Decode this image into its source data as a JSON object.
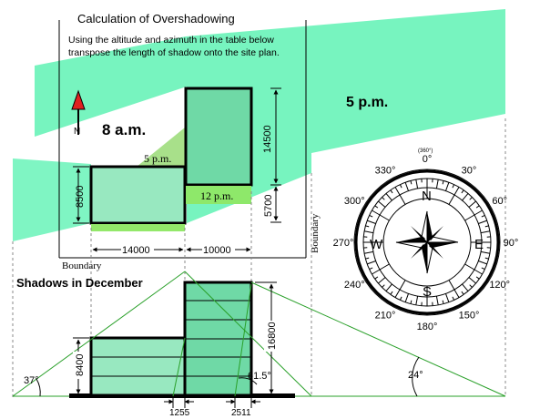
{
  "title": "Calculation of Overshadowing",
  "instructions": [
    "Using the altitude and azimuth in the table below",
    "transpose the length of shadow onto the site plan."
  ],
  "plan": {
    "north_label": "N",
    "time_8am": "8 a.m.",
    "time_5pm": "5 p.m.",
    "label_5pm_small": "5 p.m.",
    "label_12pm": "12 p.m.",
    "dim_8500": "8500",
    "dim_14500": "14500",
    "dim_5700": "5700",
    "dim_14000": "14000",
    "dim_10000": "10000",
    "boundary_bottom": "Boundary",
    "boundary_right": "Boundary"
  },
  "section": {
    "heading": "Shadows in December",
    "dim_16800": "16800",
    "dim_8400": "8400",
    "dim_1255": "1255",
    "dim_2511": "2511",
    "angle_37": "37°",
    "angle_615": "61.5°",
    "angle_24": "24°"
  },
  "compass": {
    "top_small": "(360°)",
    "cardinals": {
      "N": "N",
      "E": "E",
      "S": "S",
      "W": "W"
    },
    "degrees": [
      "0°",
      "30°",
      "60°",
      "90°",
      "120°",
      "150°",
      "180°",
      "210°",
      "240°",
      "270°",
      "300°",
      "330°"
    ]
  },
  "colors": {
    "shadow_light": "#5ff2b4",
    "building_fill": "#6fd9a6",
    "building_light": "#98e8c0",
    "ground_patch": "#93e86a",
    "noon_label_bg": "#8ee86a",
    "ray_green": "#2aa02a",
    "arrow_red": "#e02020"
  }
}
